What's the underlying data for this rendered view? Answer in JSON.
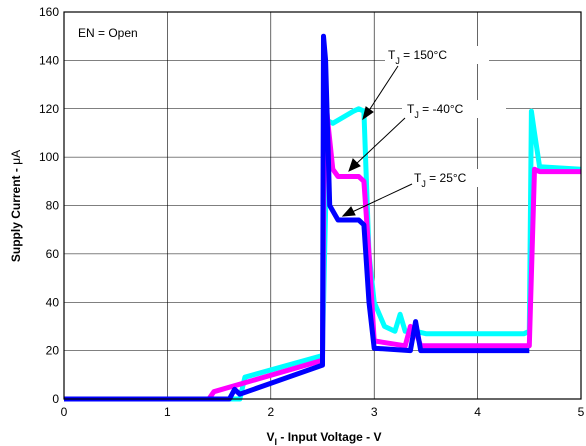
{
  "chart_data": {
    "type": "line",
    "xlabel_main": "V",
    "xlabel_sub": "I",
    "xlabel_rest": " - Input Voltage - V",
    "ylabel_main": "Supply Current - ",
    "ylabel_unit": "μA",
    "xlim": [
      0,
      5
    ],
    "ylim": [
      0,
      160
    ],
    "xticks": [
      "0",
      "1",
      "2",
      "3",
      "4",
      "5"
    ],
    "yticks": [
      "0",
      "20",
      "40",
      "60",
      "80",
      "100",
      "120",
      "140",
      "160"
    ],
    "grid": true,
    "annotation_box": "EN = Open",
    "series": [
      {
        "name": "TJ = 150°C",
        "color": "#00ffff",
        "x": [
          0,
          1.7,
          1.75,
          2.5,
          2.52,
          2.55,
          2.6,
          2.8,
          2.85,
          2.9,
          2.95,
          3.0,
          3.1,
          3.2,
          3.25,
          3.3,
          3.4,
          3.5,
          4.0,
          4.45,
          4.5,
          4.52,
          4.55,
          4.6,
          5.0
        ],
        "y": [
          0,
          0,
          9,
          18,
          60,
          115,
          114,
          119,
          120,
          119,
          60,
          40,
          30,
          28,
          35,
          28,
          28,
          27,
          27,
          27,
          28,
          119,
          110,
          96,
          95
        ]
      },
      {
        "name": "TJ = -40°C",
        "color": "#ff00ff",
        "x": [
          0,
          1.4,
          1.45,
          2.5,
          2.52,
          2.55,
          2.6,
          2.65,
          2.85,
          2.9,
          2.95,
          3.0,
          3.3,
          3.35,
          3.4,
          3.45,
          4.5,
          4.55,
          4.6,
          5.0
        ],
        "y": [
          0,
          0,
          3,
          16,
          130,
          115,
          95,
          92,
          92,
          90,
          60,
          24,
          22,
          30,
          28,
          22,
          22,
          95,
          94,
          94
        ],
        "label_position": "T_J = -40°C"
      },
      {
        "name": "TJ = 25°C",
        "color": "#0000ff",
        "x": [
          0,
          1.6,
          1.65,
          1.7,
          2.5,
          2.51,
          2.53,
          2.57,
          2.65,
          2.85,
          2.9,
          2.95,
          3.0,
          3.35,
          3.4,
          3.45,
          4.5
        ],
        "y": [
          0,
          0,
          4,
          2,
          14,
          150,
          140,
          80,
          74,
          74,
          72,
          40,
          21,
          20,
          32,
          20,
          20
        ]
      }
    ],
    "labels": [
      {
        "main": "T",
        "sub": "J",
        "rest": " = 150°C"
      },
      {
        "main": "T",
        "sub": "J",
        "rest": " = -40°C"
      },
      {
        "main": "T",
        "sub": "J",
        "rest": " = 25°C"
      }
    ]
  }
}
